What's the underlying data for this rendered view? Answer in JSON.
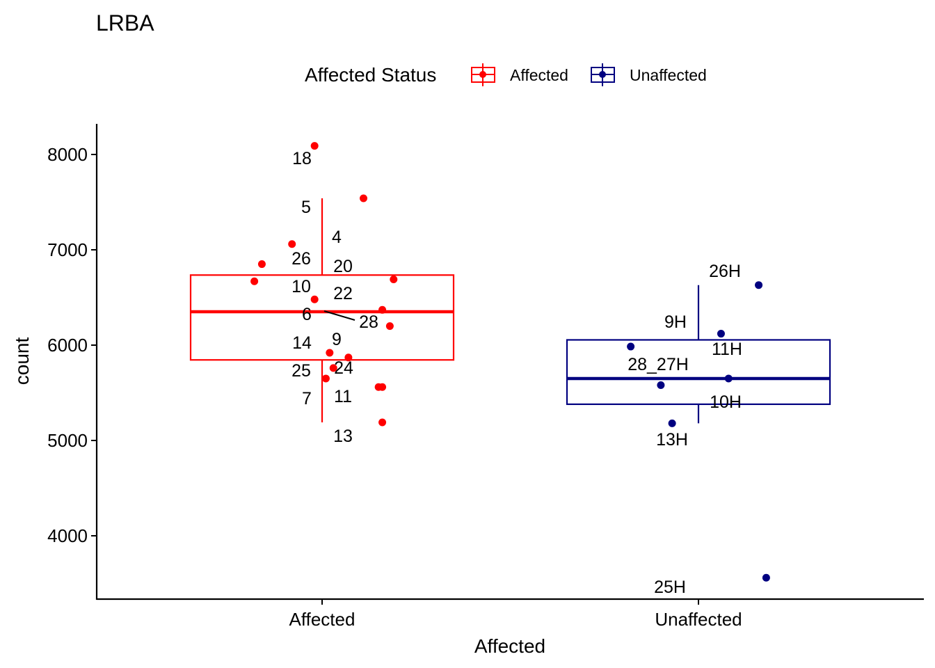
{
  "chart_data": {
    "type": "box",
    "title": "LRBA",
    "xlabel": "Affected",
    "ylabel": "count",
    "categories": [
      "Affected",
      "Unaffected"
    ],
    "y_ticks": [
      4000,
      5000,
      6000,
      7000,
      8000
    ],
    "y_tick_labels": [
      "4000",
      "5000",
      "6000",
      "7000",
      "8000"
    ],
    "ylim": [
      3380,
      8330
    ],
    "grid": false,
    "legend": {
      "title": "Affected Status",
      "position": "top",
      "entries": [
        {
          "label": "Affected",
          "color": "#ff0000"
        },
        {
          "label": "Unaffected",
          "color": "#000080"
        }
      ]
    },
    "series": [
      {
        "name": "Affected",
        "color": "#ff0000",
        "box": {
          "whisker_low": 5190,
          "q1": 5845,
          "median": 6350,
          "q3": 6735,
          "whisker_high": 7540
        },
        "points": [
          {
            "label": "18",
            "x_offset": -0.02,
            "y": 8090
          },
          {
            "label": "5",
            "x_offset": 0.11,
            "y": 7540
          },
          {
            "label": "4",
            "x_offset": -0.08,
            "y": 7060
          },
          {
            "label": "26",
            "x_offset": -0.16,
            "y": 6850
          },
          {
            "label": "20",
            "x_offset": 0.19,
            "y": 6690
          },
          {
            "label": "10",
            "x_offset": -0.18,
            "y": 6670
          },
          {
            "label": "22",
            "x_offset": -0.02,
            "y": 6480
          },
          {
            "label": "6",
            "x_offset": 0.16,
            "y": 6370
          },
          {
            "label": "28",
            "x_offset": 0.18,
            "y": 6200
          },
          {
            "label": "14",
            "x_offset": 0.02,
            "y": 5920
          },
          {
            "label": "9",
            "x_offset": 0.07,
            "y": 5870
          },
          {
            "label": "24",
            "x_offset": 0.03,
            "y": 5760
          },
          {
            "label": "25",
            "x_offset": 0.01,
            "y": 5650
          },
          {
            "label": "11",
            "x_offset": 0.16,
            "y": 5560
          },
          {
            "label": "13",
            "x_offset": 0.16,
            "y": 5190
          },
          {
            "label": "7",
            "x_offset": 0.15,
            "y": 5560
          }
        ]
      },
      {
        "name": "Unaffected",
        "color": "#000080",
        "box": {
          "whisker_low": 5180,
          "q1": 5380,
          "median": 5650,
          "q3": 6055,
          "whisker_high": 6630
        },
        "points": [
          {
            "label": "26H",
            "x_offset": 0.16,
            "y": 6630
          },
          {
            "label": "9H",
            "x_offset": 0.06,
            "y": 6120
          },
          {
            "label": "11H",
            "x_offset": 0.08,
            "y": 5650
          },
          {
            "label": "28_27H",
            "x_offset": -0.18,
            "y": 5985
          },
          {
            "label": "10H",
            "x_offset": -0.1,
            "y": 5580
          },
          {
            "label": "13H",
            "x_offset": -0.07,
            "y": 5180
          },
          {
            "label": "25H",
            "x_offset": 0.18,
            "y": 3560
          }
        ]
      }
    ]
  }
}
